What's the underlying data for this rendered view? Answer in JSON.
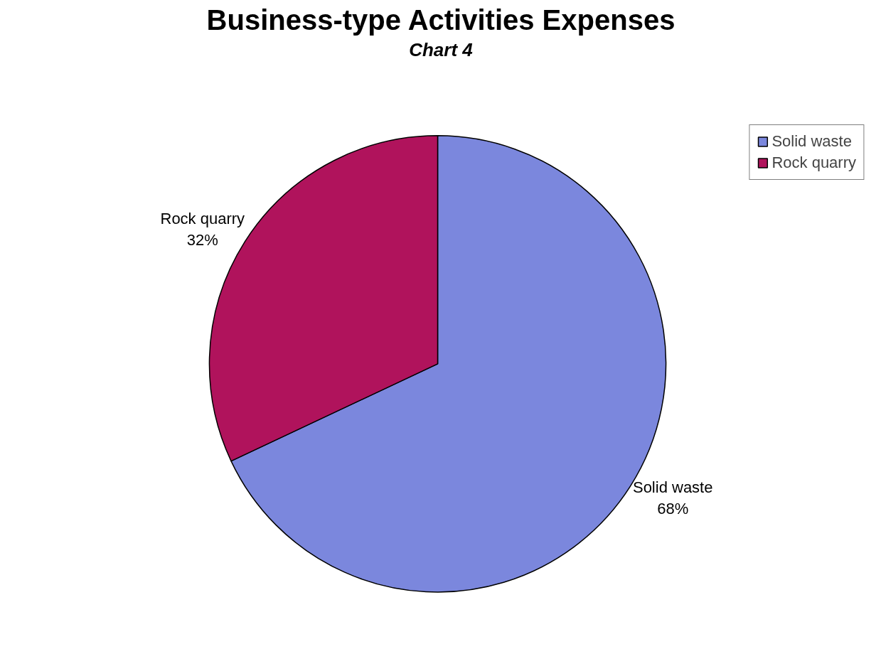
{
  "chart_data": {
    "type": "pie",
    "title": "Business-type Activities Expenses",
    "subtitle": "Chart 4",
    "categories": [
      "Solid waste",
      "Rock quarry"
    ],
    "values": [
      68,
      32
    ],
    "value_labels": [
      "68%",
      "32%"
    ],
    "colors": [
      "#7b87dd",
      "#b0135c"
    ],
    "legend": "top right"
  }
}
